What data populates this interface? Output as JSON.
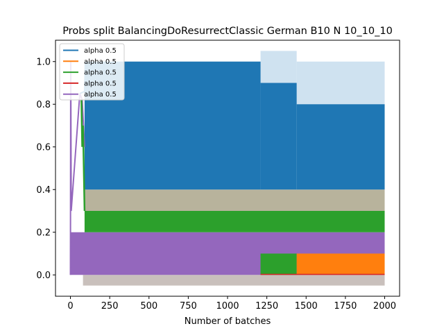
{
  "chart_data": {
    "type": "line",
    "title": "Probs split BalancingDoResurrectClassic German B10 N 10_10_10",
    "xlabel": "Number of batches",
    "ylabel": "",
    "xlim": [
      -95,
      2095
    ],
    "ylim": [
      -0.1,
      1.1
    ],
    "x_ticks": [
      0,
      250,
      500,
      750,
      1000,
      1250,
      1500,
      1750,
      2000
    ],
    "x_tick_labels": [
      "0",
      "250",
      "500",
      "750",
      "1000",
      "1250",
      "1500",
      "1750",
      "2000"
    ],
    "y_ticks": [
      0.0,
      0.2,
      0.4,
      0.6,
      0.8,
      1.0
    ],
    "y_tick_labels": [
      "0.0",
      "0.2",
      "0.4",
      "0.6",
      "0.8",
      "1.0"
    ],
    "grid": false,
    "legend_position": "top-left",
    "series": [
      {
        "name": "alpha 0.5",
        "color": "#1f77b4",
        "bands": [
          {
            "x0": 90,
            "x1": 1210,
            "low": 0.4,
            "high": 1.0
          },
          {
            "x0": 1210,
            "x1": 1440,
            "low": 0.4,
            "high": 0.9
          },
          {
            "x0": 1440,
            "x1": 2000,
            "low": 0.4,
            "high": 0.8
          }
        ]
      },
      {
        "name": "alpha 0.5",
        "color": "#ff7f0e",
        "bands": [
          {
            "x0": 1440,
            "x1": 2000,
            "low": 0.0,
            "high": 0.1
          }
        ]
      },
      {
        "name": "alpha 0.5",
        "color": "#2ca02c",
        "bands": [
          {
            "x0": 90,
            "x1": 2000,
            "low": 0.2,
            "high": 0.3
          },
          {
            "x0": 1210,
            "x1": 1440,
            "low": 0.0,
            "high": 0.1
          }
        ]
      },
      {
        "name": "alpha 0.5",
        "color": "#d62728",
        "bands": [
          {
            "x0": 1210,
            "x1": 2000,
            "low": 0.0,
            "high": 0.005
          }
        ]
      },
      {
        "name": "alpha 0.5",
        "color": "#9467bd",
        "bands": [
          {
            "x0": 0,
            "x1": 2000,
            "low": 0.0,
            "high": 0.2
          }
        ]
      }
    ],
    "shaded_regions": [
      {
        "x0": 1210,
        "x1": 1440,
        "low": 0.9,
        "high": 1.05,
        "color": "#cfe2f0"
      },
      {
        "x0": 1440,
        "x1": 2000,
        "low": 0.8,
        "high": 1.0,
        "color": "#cfe2f0"
      },
      {
        "x0": 90,
        "x1": 2000,
        "low": 0.3,
        "high": 0.4,
        "color": "#b8b39c"
      },
      {
        "x0": 80,
        "x1": 2000,
        "low": -0.05,
        "high": 0.0,
        "color": "#c9c0bc"
      }
    ]
  }
}
